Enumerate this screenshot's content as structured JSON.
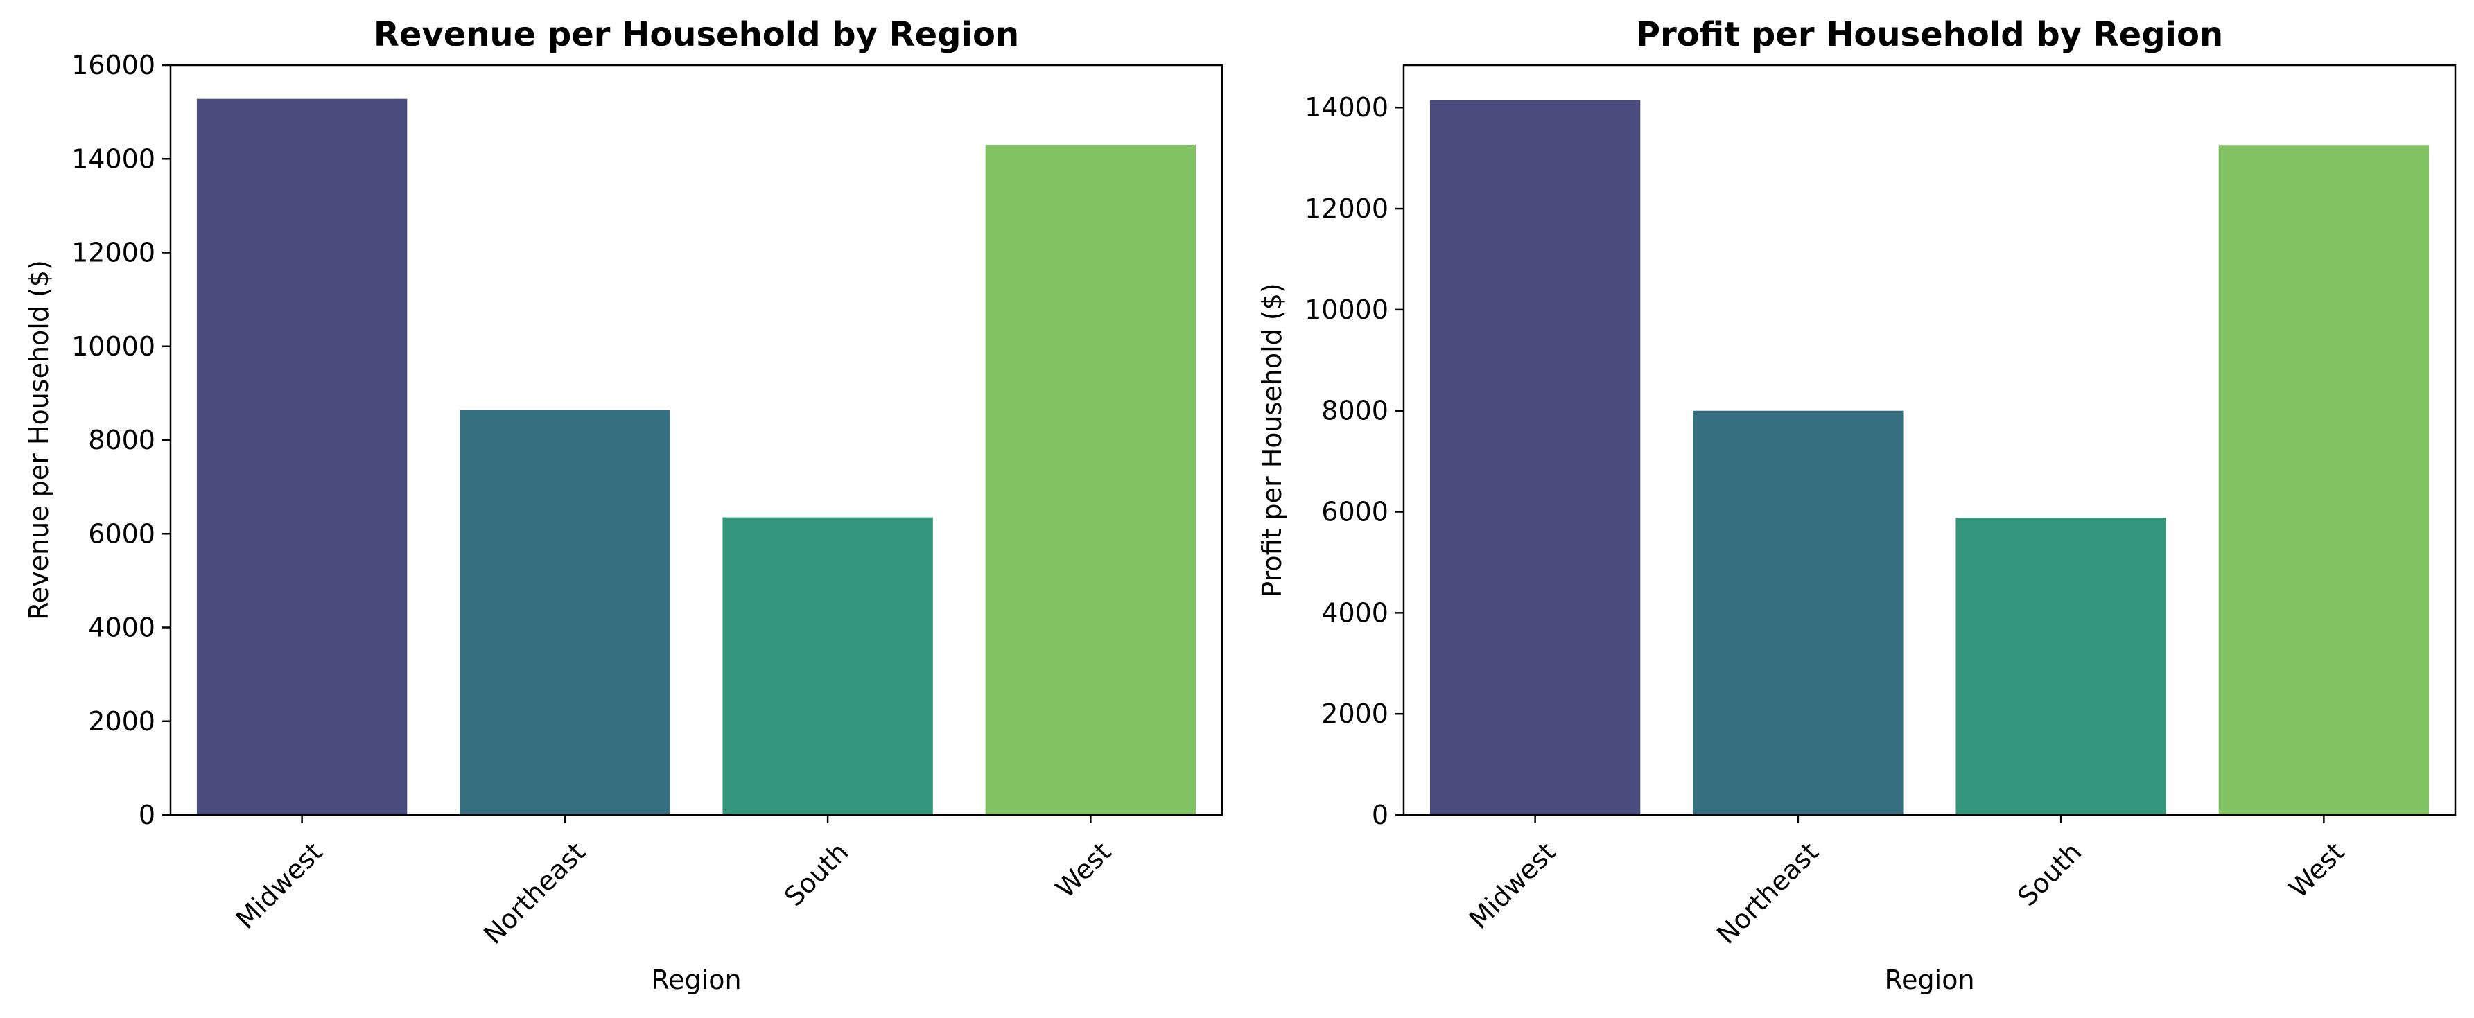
{
  "chart_data": [
    {
      "type": "bar",
      "title": "Revenue per Household by Region",
      "xlabel": "Region",
      "ylabel": "Revenue per Household ($)",
      "categories": [
        "Midwest",
        "Northeast",
        "South",
        "West"
      ],
      "values": [
        15280,
        8640,
        6350,
        14300
      ],
      "ylim": [
        0,
        16000
      ],
      "yticks": [
        0,
        2000,
        4000,
        6000,
        8000,
        10000,
        12000,
        14000,
        16000
      ],
      "colors": [
        "#4a4c7d",
        "#367080",
        "#34977b",
        "#81c262"
      ],
      "grid": false
    },
    {
      "type": "bar",
      "title": "Profit per Household by Region",
      "xlabel": "Region",
      "ylabel": "Profit per Household ($)",
      "categories": [
        "Midwest",
        "Northeast",
        "South",
        "West"
      ],
      "values": [
        14150,
        8000,
        5880,
        13260
      ],
      "ylim": [
        0,
        14840
      ],
      "yticks": [
        0,
        2000,
        4000,
        6000,
        8000,
        10000,
        12000,
        14000
      ],
      "colors": [
        "#4a4c7d",
        "#367080",
        "#34977b",
        "#81c262"
      ],
      "grid": false
    }
  ]
}
